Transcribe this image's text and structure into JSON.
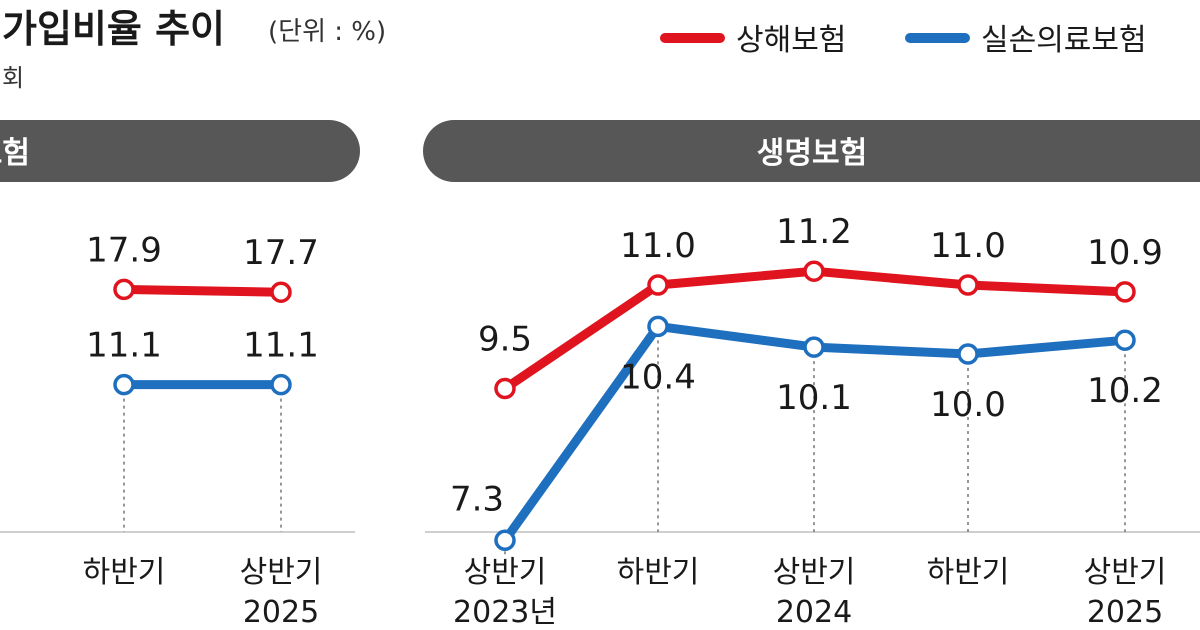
{
  "header": {
    "title": "가입비율 추이",
    "unit": "(단위 : %)",
    "source": "회"
  },
  "legend": [
    {
      "name": "상해보험",
      "color": "#e0141e"
    },
    {
      "name": "실손의료보험",
      "color": "#1f6fbf"
    }
  ],
  "colors": {
    "panel_header": "#575757",
    "axis_line": "#cfcfcf"
  },
  "chart_data": [
    {
      "type": "line",
      "title": "보험",
      "categories": [
        "하반기",
        "상반기"
      ],
      "category_lines": [
        [
          "하반기"
        ],
        [
          "상반기",
          "2025"
        ]
      ],
      "series": [
        {
          "name": "상해보험",
          "values": [
            17.9,
            17.7
          ],
          "labels": [
            "17.9",
            "17.7"
          ]
        },
        {
          "name": "실손의료보험",
          "values": [
            11.1,
            11.1
          ],
          "labels": [
            "11.1",
            "11.1"
          ]
        }
      ]
    },
    {
      "type": "line",
      "title": "생명보험",
      "categories": [
        "상반기",
        "하반기",
        "상반기",
        "하반기",
        "상반기"
      ],
      "category_lines": [
        [
          "상반기",
          "2023년"
        ],
        [
          "하반기"
        ],
        [
          "상반기",
          "2024"
        ],
        [
          "하반기"
        ],
        [
          "상반기",
          "2025"
        ]
      ],
      "series": [
        {
          "name": "상해보험",
          "values": [
            9.5,
            11.0,
            11.2,
            11.0,
            10.9
          ],
          "labels": [
            "9.5",
            "11.0",
            "11.2",
            "11.0",
            "10.9"
          ]
        },
        {
          "name": "실손의료보험",
          "values": [
            7.3,
            10.4,
            10.1,
            10.0,
            10.2
          ],
          "labels": [
            "7.3",
            "10.4",
            "10.1",
            "10.0",
            "10.2"
          ]
        }
      ]
    }
  ]
}
